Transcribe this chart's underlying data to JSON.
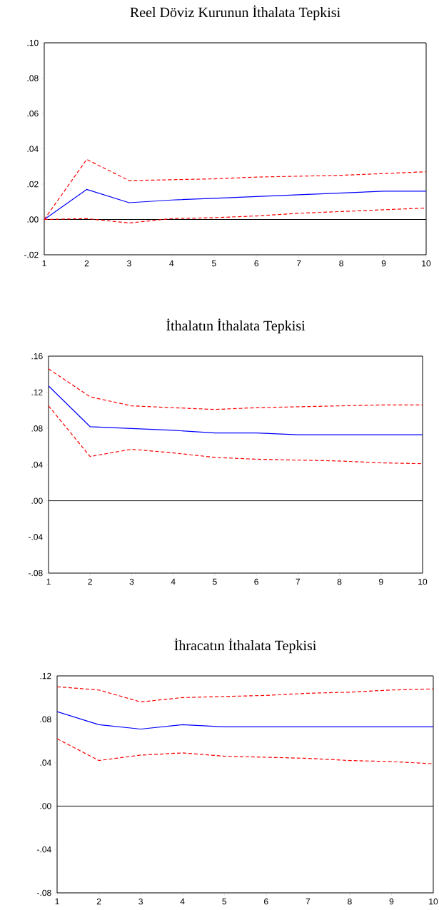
{
  "chart_data": [
    {
      "type": "line",
      "title": "Reel Döviz Kurunun İthalata Tepkisi",
      "x": [
        1,
        2,
        3,
        4,
        5,
        6,
        7,
        8,
        9,
        10
      ],
      "xlim": [
        1,
        10
      ],
      "xticks": [
        1,
        2,
        3,
        4,
        5,
        6,
        7,
        8,
        9,
        10
      ],
      "ylim": [
        -0.02,
        0.1
      ],
      "yticks": [
        {
          "value": -0.02,
          "label": "-.02"
        },
        {
          "value": 0.0,
          "label": ".00"
        },
        {
          "value": 0.02,
          "label": ".02"
        },
        {
          "value": 0.04,
          "label": ".04"
        },
        {
          "value": 0.06,
          "label": ".06"
        },
        {
          "value": 0.08,
          "label": ".08"
        },
        {
          "value": 0.1,
          "label": ".10"
        }
      ],
      "marker": "none",
      "ref_lines": [
        {
          "axis": "y",
          "value": 0,
          "color": "#000000",
          "line_style": "solid"
        }
      ],
      "series": [
        {
          "color": "#0000ff",
          "line_style": "solid",
          "values": [
            0,
            0.017,
            0.0095,
            0.011,
            0.012,
            0.013,
            0.014,
            0.015,
            0.016,
            0.016
          ]
        },
        {
          "color": "#ff0000",
          "line_style": "dashed",
          "values": [
            0,
            0.034,
            0.022,
            0.0225,
            0.023,
            0.024,
            0.0245,
            0.025,
            0.026,
            0.027
          ]
        },
        {
          "color": "#ff0000",
          "line_style": "dashed",
          "values": [
            0,
            0.0005,
            -0.002,
            0.0005,
            0.001,
            0.002,
            0.0035,
            0.0045,
            0.0055,
            0.0065
          ]
        }
      ]
    },
    {
      "type": "line",
      "title": "İthalatın İthalata Tepkisi",
      "x": [
        1,
        2,
        3,
        4,
        5,
        6,
        7,
        8,
        9,
        10
      ],
      "xlim": [
        1,
        10
      ],
      "xticks": [
        1,
        2,
        3,
        4,
        5,
        6,
        7,
        8,
        9,
        10
      ],
      "ylim": [
        -0.08,
        0.16
      ],
      "yticks": [
        {
          "value": -0.08,
          "label": "-.08"
        },
        {
          "value": -0.04,
          "label": "-.04"
        },
        {
          "value": 0.0,
          "label": ".00"
        },
        {
          "value": 0.04,
          "label": ".04"
        },
        {
          "value": 0.08,
          "label": ".08"
        },
        {
          "value": 0.12,
          "label": ".12"
        },
        {
          "value": 0.16,
          "label": ".16"
        }
      ],
      "marker": "none",
      "ref_lines": [
        {
          "axis": "y",
          "value": 0,
          "color": "#000000",
          "line_style": "solid"
        }
      ],
      "series": [
        {
          "color": "#0000ff",
          "line_style": "solid",
          "values": [
            0.127,
            0.082,
            0.08,
            0.078,
            0.075,
            0.075,
            0.073,
            0.073,
            0.073,
            0.073
          ]
        },
        {
          "color": "#ff0000",
          "line_style": "dashed",
          "values": [
            0.146,
            0.115,
            0.105,
            0.103,
            0.101,
            0.103,
            0.104,
            0.105,
            0.106,
            0.106
          ]
        },
        {
          "color": "#ff0000",
          "line_style": "dashed",
          "values": [
            0.105,
            0.049,
            0.057,
            0.053,
            0.048,
            0.046,
            0.045,
            0.044,
            0.042,
            0.041
          ]
        }
      ]
    },
    {
      "type": "line",
      "title": "İhracatın İthalata Tepkisi",
      "x": [
        1,
        2,
        3,
        4,
        5,
        6,
        7,
        8,
        9,
        10
      ],
      "xlim": [
        1,
        10
      ],
      "xticks": [
        1,
        2,
        3,
        4,
        5,
        6,
        7,
        8,
        9,
        10
      ],
      "ylim": [
        -0.08,
        0.12
      ],
      "yticks": [
        {
          "value": -0.08,
          "label": "-.08"
        },
        {
          "value": -0.04,
          "label": "-.04"
        },
        {
          "value": 0.0,
          "label": ".00"
        },
        {
          "value": 0.04,
          "label": ".04"
        },
        {
          "value": 0.08,
          "label": ".08"
        },
        {
          "value": 0.12,
          "label": ".12"
        }
      ],
      "marker": "none",
      "ref_lines": [
        {
          "axis": "y",
          "value": 0,
          "color": "#000000",
          "line_style": "solid"
        }
      ],
      "series": [
        {
          "color": "#0000ff",
          "line_style": "solid",
          "values": [
            0.087,
            0.075,
            0.071,
            0.075,
            0.073,
            0.073,
            0.073,
            0.073,
            0.073,
            0.073
          ]
        },
        {
          "color": "#ff0000",
          "line_style": "dashed",
          "values": [
            0.11,
            0.107,
            0.096,
            0.1,
            0.101,
            0.102,
            0.104,
            0.105,
            0.107,
            0.108
          ]
        },
        {
          "color": "#ff0000",
          "line_style": "dashed",
          "values": [
            0.062,
            0.042,
            0.047,
            0.049,
            0.046,
            0.045,
            0.044,
            0.042,
            0.041,
            0.039
          ]
        }
      ]
    }
  ]
}
